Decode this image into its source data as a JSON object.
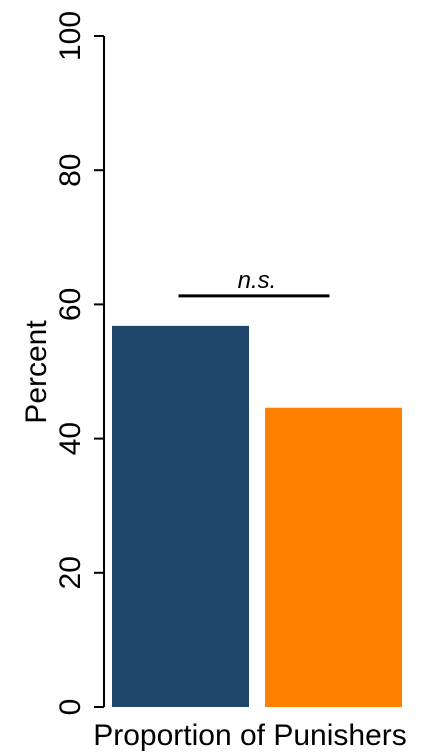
{
  "chart_data": {
    "type": "bar",
    "categories": [
      "",
      ""
    ],
    "values": [
      56.8,
      44.6
    ],
    "colors": [
      "#1f476c",
      "#ff8000"
    ],
    "title": "",
    "xlabel": "Proportion of Punishers",
    "ylabel": "Percent",
    "ylim": [
      0,
      100
    ],
    "yticks": [
      "0",
      "20",
      "40",
      "60",
      "80",
      "100"
    ],
    "yticks_rotated": true,
    "grid": false,
    "legend": "none",
    "annotation": {
      "text": "n.s.",
      "between": [
        0,
        1
      ]
    }
  }
}
